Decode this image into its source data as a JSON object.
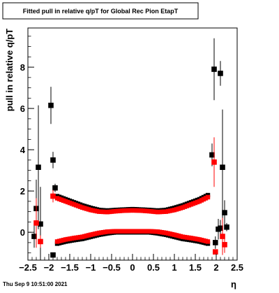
{
  "chart_data": {
    "type": "scatter",
    "title": "Fitted pull in relative q/pT for Global Rec Pion EtapT",
    "xlabel": "η",
    "ylabel": "pull in relative q/pT",
    "xlim": [
      -2.5,
      2.5
    ],
    "ylim": [
      -1.35,
      9.9
    ],
    "x_ticks": [
      -2.5,
      -2,
      -1.5,
      -1,
      -0.5,
      0,
      0.5,
      1,
      1.5,
      2,
      2.5
    ],
    "x_tick_labels": [
      "−2.5",
      "−2",
      "−1.5",
      "−1",
      "−0.5",
      "0",
      "0.5",
      "1",
      "1.5",
      "2",
      "2.5"
    ],
    "y_ticks": [
      0,
      2,
      4,
      6,
      8
    ],
    "y_tick_labels": [
      "0",
      "2",
      "4",
      "6",
      "8"
    ],
    "grid": false,
    "legend": "none",
    "series": [
      {
        "color": "#000000",
        "marker": "square",
        "points": [
          {
            "x": -2.35,
            "y": -0.2,
            "err": 0.55
          },
          {
            "x": -2.3,
            "y": 1.15,
            "err": 1.4
          },
          {
            "x": -2.25,
            "y": 3.15,
            "err": 3.0
          },
          {
            "x": -2.2,
            "y": 0.4,
            "err": 1.8
          },
          {
            "x": -1.9,
            "y": 3.5,
            "err": 0.4
          },
          {
            "x": -1.95,
            "y": 6.15,
            "err": 0.9
          },
          {
            "x": -1.85,
            "y": 2.15,
            "err": 0.2
          },
          {
            "x": -1.9,
            "y": -1.1,
            "err": 0.12
          },
          {
            "x": 1.9,
            "y": 3.75,
            "err": 0.55
          },
          {
            "x": 1.95,
            "y": 7.9,
            "err": 1.5
          },
          {
            "x": 2.1,
            "y": 7.7,
            "err": 0.6
          },
          {
            "x": 2.05,
            "y": 0.15,
            "err": 0.5
          },
          {
            "x": 2.1,
            "y": 0.2,
            "err": 0.4
          },
          {
            "x": 2.15,
            "y": 3.15,
            "err": 2.8
          },
          {
            "x": 2.2,
            "y": 0.95,
            "err": 0.6
          },
          {
            "x": 2.25,
            "y": 0.25,
            "err": 0.2
          },
          {
            "x": 1.98,
            "y": -0.5,
            "err": 0.3
          }
        ],
        "band_upper": [
          {
            "x": -1.8,
            "y": 1.75
          },
          {
            "x": -1.6,
            "y": 1.6
          },
          {
            "x": -1.4,
            "y": 1.45
          },
          {
            "x": -1.2,
            "y": 1.3
          },
          {
            "x": -1.0,
            "y": 1.18
          },
          {
            "x": -0.8,
            "y": 1.08
          },
          {
            "x": -0.6,
            "y": 1.05
          },
          {
            "x": -0.4,
            "y": 1.08
          },
          {
            "x": -0.2,
            "y": 1.1
          },
          {
            "x": 0.0,
            "y": 1.12
          },
          {
            "x": 0.2,
            "y": 1.1
          },
          {
            "x": 0.4,
            "y": 1.08
          },
          {
            "x": 0.6,
            "y": 1.05
          },
          {
            "x": 0.8,
            "y": 1.08
          },
          {
            "x": 1.0,
            "y": 1.18
          },
          {
            "x": 1.2,
            "y": 1.3
          },
          {
            "x": 1.4,
            "y": 1.45
          },
          {
            "x": 1.6,
            "y": 1.6
          },
          {
            "x": 1.8,
            "y": 1.8
          }
        ],
        "band_lower": [
          {
            "x": -1.8,
            "y": -0.55
          },
          {
            "x": -1.6,
            "y": -0.45
          },
          {
            "x": -1.4,
            "y": -0.38
          },
          {
            "x": -1.2,
            "y": -0.32
          },
          {
            "x": -1.0,
            "y": -0.22
          },
          {
            "x": -0.8,
            "y": -0.12
          },
          {
            "x": -0.6,
            "y": -0.05
          },
          {
            "x": -0.4,
            "y": 0.0
          },
          {
            "x": -0.2,
            "y": 0.0
          },
          {
            "x": 0.0,
            "y": 0.0
          },
          {
            "x": 0.2,
            "y": 0.0
          },
          {
            "x": 0.4,
            "y": 0.0
          },
          {
            "x": 0.6,
            "y": -0.05
          },
          {
            "x": 0.8,
            "y": -0.12
          },
          {
            "x": 1.0,
            "y": -0.22
          },
          {
            "x": 1.2,
            "y": -0.32
          },
          {
            "x": 1.4,
            "y": -0.38
          },
          {
            "x": 1.6,
            "y": -0.45
          },
          {
            "x": 1.8,
            "y": -0.55
          }
        ]
      },
      {
        "color": "#ff0000",
        "marker": "square",
        "points": [
          {
            "x": -2.3,
            "y": 0.45,
            "err": 1.2
          },
          {
            "x": -2.2,
            "y": -0.45,
            "err": 0.3
          },
          {
            "x": -1.9,
            "y": 1.75,
            "err": 0.3
          },
          {
            "x": 1.95,
            "y": 3.4,
            "err": 1.2
          },
          {
            "x": 1.98,
            "y": -0.95,
            "err": 0.1
          },
          {
            "x": 2.15,
            "y": -0.2,
            "err": 0.9
          },
          {
            "x": 2.2,
            "y": -0.6,
            "err": 0.4
          }
        ],
        "band_upper": [
          {
            "x": -1.8,
            "y": 1.65
          },
          {
            "x": -1.6,
            "y": 1.5
          },
          {
            "x": -1.4,
            "y": 1.35
          },
          {
            "x": -1.2,
            "y": 1.2
          },
          {
            "x": -1.0,
            "y": 1.08
          },
          {
            "x": -0.8,
            "y": 1.0
          },
          {
            "x": -0.6,
            "y": 0.98
          },
          {
            "x": -0.4,
            "y": 1.02
          },
          {
            "x": -0.2,
            "y": 1.05
          },
          {
            "x": 0.0,
            "y": 1.06
          },
          {
            "x": 0.2,
            "y": 1.05
          },
          {
            "x": 0.4,
            "y": 1.02
          },
          {
            "x": 0.6,
            "y": 0.98
          },
          {
            "x": 0.8,
            "y": 1.0
          },
          {
            "x": 1.0,
            "y": 1.08
          },
          {
            "x": 1.2,
            "y": 1.2
          },
          {
            "x": 1.4,
            "y": 1.35
          },
          {
            "x": 1.6,
            "y": 1.5
          },
          {
            "x": 1.8,
            "y": 1.7
          }
        ],
        "band_lower": [
          {
            "x": -1.8,
            "y": -0.45
          },
          {
            "x": -1.6,
            "y": -0.35
          },
          {
            "x": -1.4,
            "y": -0.28
          },
          {
            "x": -1.2,
            "y": -0.22
          },
          {
            "x": -1.0,
            "y": -0.12
          },
          {
            "x": -0.8,
            "y": -0.03
          },
          {
            "x": -0.6,
            "y": 0.03
          },
          {
            "x": -0.4,
            "y": 0.05
          },
          {
            "x": -0.2,
            "y": 0.05
          },
          {
            "x": 0.0,
            "y": 0.05
          },
          {
            "x": 0.2,
            "y": 0.05
          },
          {
            "x": 0.4,
            "y": 0.05
          },
          {
            "x": 0.6,
            "y": 0.03
          },
          {
            "x": 0.8,
            "y": -0.03
          },
          {
            "x": 1.0,
            "y": -0.12
          },
          {
            "x": 1.2,
            "y": -0.22
          },
          {
            "x": 1.4,
            "y": -0.28
          },
          {
            "x": 1.6,
            "y": -0.35
          },
          {
            "x": 1.8,
            "y": -0.45
          }
        ]
      }
    ]
  },
  "footer": {
    "timestamp": "Thu Sep  9 10:51:00 2021"
  }
}
